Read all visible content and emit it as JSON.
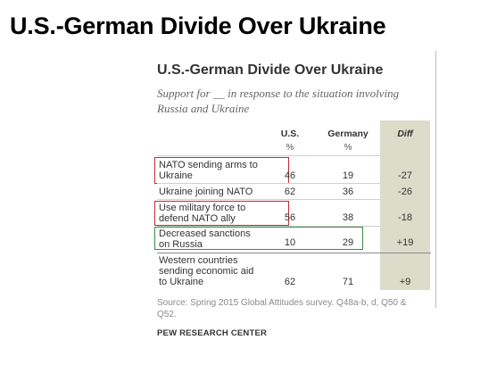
{
  "slide_title": "U.S.-German Divide Over Ukraine",
  "chart_data": {
    "type": "table",
    "title": "U.S.-German  Divide Over Ukraine",
    "subtitle": "Support for __ in response to the situation involving Russia and Ukraine",
    "columns": [
      {
        "name": "U.S.",
        "unit": "%"
      },
      {
        "name": "Germany",
        "unit": "%"
      },
      {
        "name": "Diff",
        "unit": ""
      }
    ],
    "rows": [
      {
        "label_lines": [
          "NATO sending arms to",
          "Ukraine"
        ],
        "us": "46",
        "germany": "19",
        "diff": "-27",
        "highlight": "red"
      },
      {
        "label_lines": [
          "Ukraine joining NATO"
        ],
        "us": "62",
        "germany": "36",
        "diff": "-26",
        "highlight": "none"
      },
      {
        "label_lines": [
          "Use military force to",
          "defend NATO ally"
        ],
        "us": "56",
        "germany": "38",
        "diff": "-18",
        "highlight": "red"
      },
      {
        "label_lines": [
          "Decreased sanctions",
          "on Russia"
        ],
        "us": "10",
        "germany": "29",
        "diff": "+19",
        "highlight": "green"
      },
      {
        "label_lines": [
          "Western countries",
          "sending economic aid",
          "to Ukraine"
        ],
        "us": "62",
        "germany": "71",
        "diff": "+9",
        "highlight": "none"
      }
    ],
    "source_lines": [
      "Source: Spring 2015 Global Attitudes survey. Q48a-b, d, Q50 &",
      "Q52."
    ],
    "org": "PEW RESEARCH CENTER",
    "colors": {
      "diff_column": "#dcdccb",
      "red_box": "#c0283b",
      "green_box": "#3a8e3a"
    }
  }
}
